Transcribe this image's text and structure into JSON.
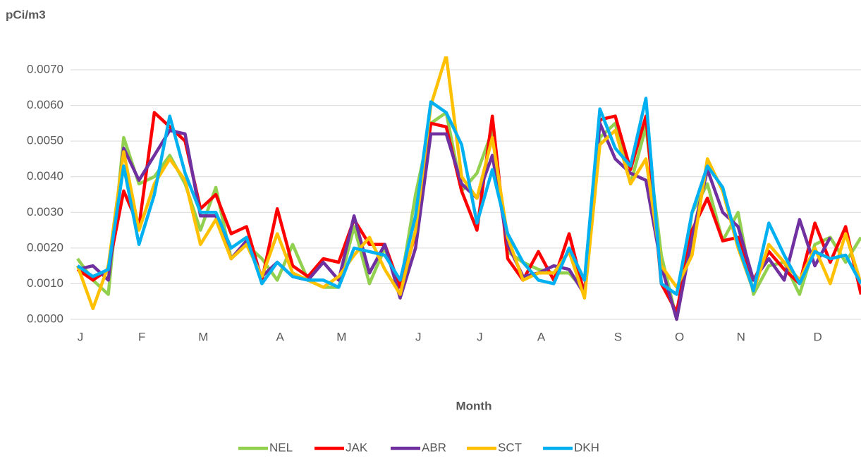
{
  "chart_data": {
    "type": "line",
    "title": "pCi/m3",
    "x_label": "Month",
    "categories": [
      "J",
      null,
      null,
      null,
      "F",
      null,
      null,
      null,
      "M",
      null,
      null,
      null,
      null,
      "A",
      null,
      null,
      null,
      "M",
      null,
      null,
      null,
      null,
      "J",
      null,
      null,
      null,
      "J",
      null,
      null,
      null,
      "A",
      null,
      null,
      null,
      null,
      "S",
      null,
      null,
      null,
      "O",
      null,
      null,
      null,
      "N",
      null,
      null,
      null,
      null,
      "D",
      null,
      null,
      null
    ],
    "series": [
      {
        "name": "NEL",
        "color": "#92d050",
        "values": [
          0.0017,
          0.0011,
          0.0007,
          0.0051,
          0.0038,
          0.004,
          0.0046,
          0.0038,
          0.0025,
          0.0037,
          0.0017,
          0.0021,
          0.0017,
          0.0011,
          0.0021,
          0.0011,
          0.0009,
          0.0009,
          0.0026,
          0.001,
          0.002,
          0.0009,
          0.0035,
          0.0055,
          0.0058,
          0.0036,
          0.0041,
          0.0053,
          0.0019,
          0.0016,
          0.0014,
          0.0013,
          0.0013,
          0.0008,
          0.0051,
          0.0055,
          0.0038,
          0.0054,
          0.0018,
          0.0,
          0.003,
          0.0038,
          0.0022,
          0.003,
          0.0007,
          0.0015,
          0.0016,
          0.0007,
          0.0021,
          0.0023,
          0.0016,
          0.0023
        ]
      },
      {
        "name": "JAK",
        "color": "#ff0000",
        "values": [
          0.0014,
          0.0011,
          0.0014,
          0.0036,
          0.0026,
          0.0058,
          0.0054,
          0.005,
          0.0031,
          0.0035,
          0.0024,
          0.0026,
          0.0011,
          0.0031,
          0.0015,
          0.0012,
          0.0017,
          0.0016,
          0.0028,
          0.0021,
          0.0021,
          0.0009,
          0.0024,
          0.0055,
          0.0054,
          0.0036,
          0.0025,
          0.0057,
          0.0017,
          0.0011,
          0.0019,
          0.0011,
          0.0024,
          0.0007,
          0.0056,
          0.0057,
          0.0042,
          0.0057,
          0.001,
          0.0002,
          0.0025,
          0.0034,
          0.0022,
          0.0023,
          0.0011,
          0.0019,
          0.0014,
          0.001,
          0.0027,
          0.0016,
          0.0026,
          0.0007
        ]
      },
      {
        "name": "ABR",
        "color": "#7030a0",
        "values": [
          0.0014,
          0.0015,
          0.0011,
          0.0048,
          0.0039,
          0.0046,
          0.0053,
          0.0052,
          0.0029,
          0.0029,
          0.0017,
          0.0022,
          0.0012,
          0.0016,
          0.0012,
          0.0011,
          0.0016,
          0.0011,
          0.0029,
          0.0013,
          0.0021,
          0.0006,
          0.002,
          0.0052,
          0.0052,
          0.0038,
          0.0034,
          0.0046,
          0.0021,
          0.0012,
          0.0013,
          0.0015,
          0.0014,
          0.0007,
          0.0055,
          0.0045,
          0.0041,
          0.0039,
          0.0015,
          0.0,
          0.0023,
          0.0042,
          0.003,
          0.0026,
          0.0011,
          0.0017,
          0.0011,
          0.0028,
          0.0015,
          0.0023,
          null,
          null
        ]
      },
      {
        "name": "SCT",
        "color": "#ffc000",
        "values": [
          0.0015,
          0.0003,
          0.0015,
          0.0047,
          0.0025,
          0.0038,
          0.0045,
          0.0039,
          0.0021,
          0.0028,
          0.0017,
          0.0021,
          0.0012,
          0.0024,
          0.0013,
          0.0011,
          0.0009,
          0.0012,
          0.0018,
          0.0023,
          0.0014,
          0.0007,
          0.0025,
          0.006,
          0.0074,
          0.004,
          0.0034,
          0.0051,
          0.0023,
          0.0011,
          0.0013,
          0.0013,
          0.0019,
          0.0006,
          0.0049,
          0.0053,
          0.0038,
          0.0045,
          0.0015,
          0.0009,
          0.0018,
          0.0045,
          0.0036,
          0.002,
          0.0008,
          0.0021,
          0.0016,
          0.0011,
          0.002,
          0.001,
          0.0024,
          0.001
        ]
      },
      {
        "name": "DKH",
        "color": "#00b0f0",
        "values": [
          0.0015,
          0.0012,
          0.0014,
          0.0043,
          0.0021,
          0.0035,
          0.0057,
          0.0041,
          0.003,
          0.003,
          0.002,
          0.0023,
          0.001,
          0.0016,
          0.0012,
          0.0011,
          0.0011,
          0.0009,
          0.002,
          0.0019,
          0.0018,
          0.0011,
          0.0029,
          0.0061,
          0.0058,
          0.0049,
          0.0027,
          0.0042,
          0.0024,
          0.0016,
          0.0011,
          0.001,
          0.002,
          0.0011,
          0.0059,
          0.0048,
          0.0043,
          0.0062,
          0.001,
          0.0007,
          0.003,
          0.0043,
          0.0037,
          0.0021,
          0.0008,
          0.0027,
          0.0018,
          0.001,
          0.0019,
          0.0017,
          0.0018,
          0.001
        ]
      }
    ],
    "ylim": [
      0,
      0.007
    ],
    "yticks": [
      {
        "value": 0,
        "label": "0.0000"
      },
      {
        "value": 0.001,
        "label": "0.0010"
      },
      {
        "value": 0.002,
        "label": "0.0020"
      },
      {
        "value": 0.003,
        "label": "0.0030"
      },
      {
        "value": 0.004,
        "label": "0.0040"
      },
      {
        "value": 0.005,
        "label": "0.0050"
      },
      {
        "value": 0.006,
        "label": "0.0060"
      },
      {
        "value": 0.007,
        "label": "0.0070"
      }
    ],
    "grid": true,
    "legend": "bottom"
  }
}
